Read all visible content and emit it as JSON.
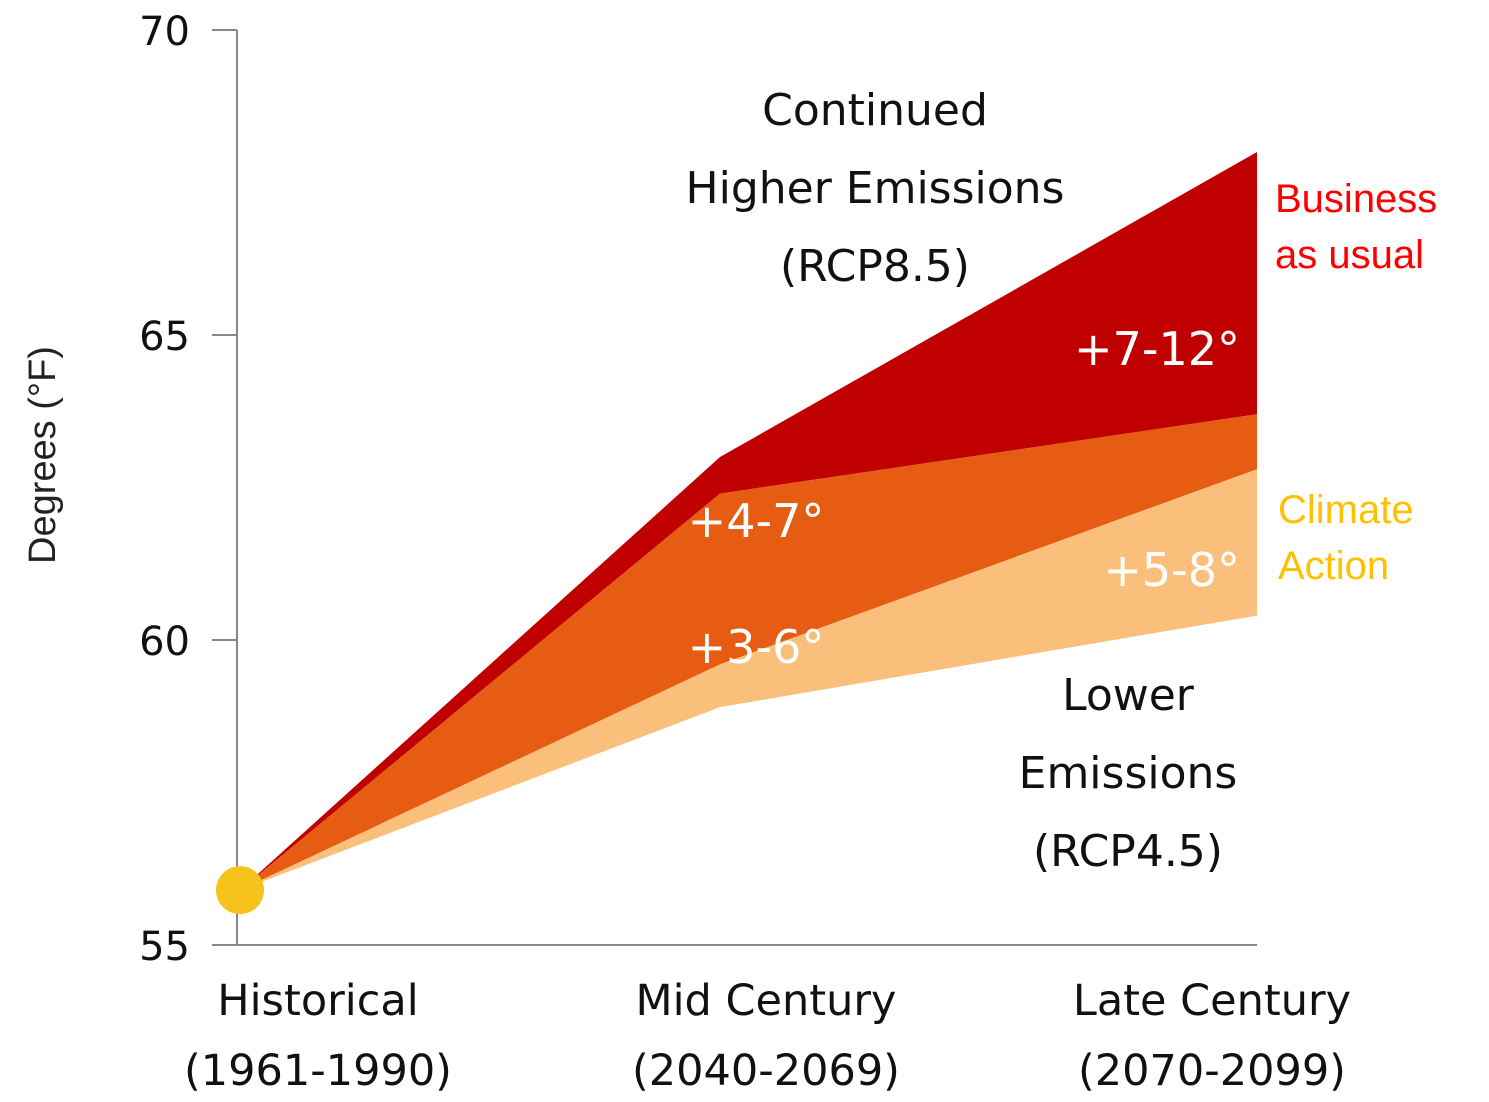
{
  "chart_data": {
    "type": "area",
    "ylabel": "Degrees (°F)",
    "xlabel": "",
    "ylim": [
      55,
      70
    ],
    "yticks": [
      "55",
      "60",
      "65",
      "70"
    ],
    "categories": [
      [
        "Historical",
        "(1961-1990)"
      ],
      [
        "Mid Century",
        "(2040-2069)"
      ],
      [
        "Late Century",
        "(2070-2099)"
      ]
    ],
    "historical_point": 55.9,
    "bands": [
      {
        "name": "Continued Higher Emissions (RCP8.5)",
        "upper": [
          55.9,
          63.0,
          68.0
        ],
        "lower": [
          55.9,
          62.4,
          63.7
        ],
        "color": "#c00000",
        "range_label": "+7-12°"
      },
      {
        "name": "overlap",
        "upper": [
          55.9,
          62.4,
          63.7
        ],
        "lower": [
          55.9,
          59.6,
          62.8
        ],
        "color": "#e55c12",
        "range_label": "+4-7°"
      },
      {
        "name": "Lower Emissions (RCP4.5)",
        "upper": [
          55.9,
          59.6,
          62.8
        ],
        "lower": [
          55.9,
          58.9,
          60.4
        ],
        "color": "#fbbf7c",
        "range_label": "+5-8°"
      }
    ],
    "mid_lower_label": "+3-6°",
    "annotations": {
      "high": [
        "Continued",
        "Higher Emissions",
        "(RCP8.5)"
      ],
      "low": [
        "Lower",
        "Emissions",
        "(RCP4.5)"
      ],
      "business": [
        "Business",
        "as usual"
      ],
      "climate": [
        "Climate",
        "Action"
      ]
    },
    "colors": {
      "business_text": "#ff0000",
      "climate_text": "#ffc000",
      "historical_dot": "#f7c21b",
      "axis": "#888888"
    }
  }
}
